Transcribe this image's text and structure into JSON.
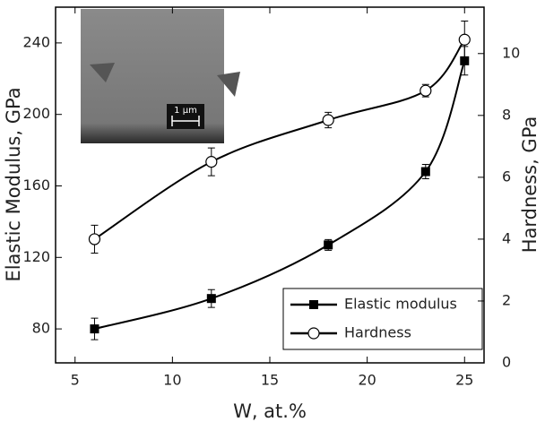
{
  "chart_data": {
    "type": "line",
    "x_label": "W, at.%",
    "y_label": "Elastic Modulus, GPa",
    "y2_label": "Hardness, GPa",
    "x": [
      6,
      12,
      18,
      23,
      25
    ],
    "series": [
      {
        "name": "Elastic modulus",
        "color": "#000000",
        "marker": "square-filled",
        "values": [
          80,
          97,
          127,
          168,
          230
        ],
        "errors": [
          6,
          5,
          3,
          4,
          8
        ]
      },
      {
        "name": "Hardness",
        "color": "#000000",
        "marker": "circle-open",
        "axis": "y2",
        "values": [
          4.0,
          6.5,
          7.85,
          8.8,
          10.45
        ],
        "errors": [
          0.45,
          0.45,
          0.25,
          0.2,
          0.6
        ]
      }
    ],
    "xlim": [
      4,
      26
    ],
    "xticks": [
      5,
      10,
      15,
      20,
      25
    ],
    "ylim": [
      61,
      260
    ],
    "yticks": [
      80,
      120,
      160,
      200,
      240
    ],
    "y2lim": [
      0,
      11.5
    ],
    "y2ticks": [
      0,
      2,
      4,
      6,
      8,
      10
    ],
    "legend": "lower-right",
    "inset_label": "1 µm"
  }
}
